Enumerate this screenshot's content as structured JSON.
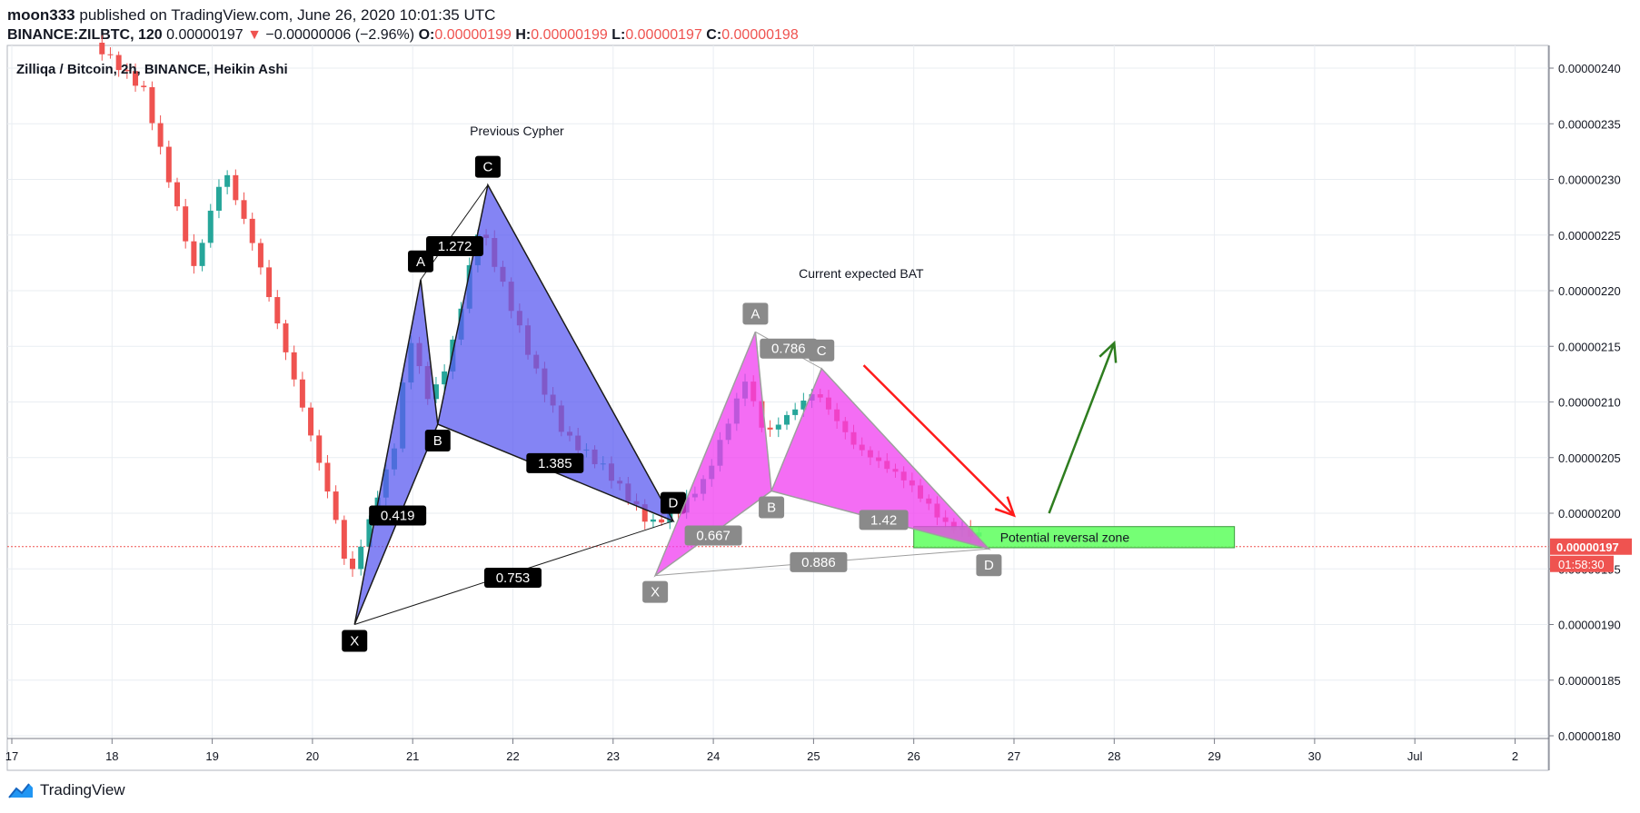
{
  "header": {
    "author": "moon333",
    "published_text": "published on TradingView.com, June 26, 2020 10:01:35 UTC",
    "symbol": "BINANCE:ZILBTC, 120",
    "last": "0.00000197",
    "change_arrow": "▼",
    "change": "−0.00000006 (−2.96%)",
    "o_label": "O:",
    "o_value": "0.00000199",
    "h_label": "H:",
    "h_value": "0.00000199",
    "l_label": "L:",
    "l_value": "0.00000197",
    "c_label": "C:",
    "c_value": "0.00000198"
  },
  "footer": {
    "brand": "TradingView"
  },
  "colors": {
    "up": "#26a69a",
    "down": "#ef5350",
    "blue_pattern": "#5b5bf0",
    "pink_pattern": "#f03cf0",
    "zone": "#66ff66",
    "red_arrow": "#ff1a1a",
    "green_arrow": "#2e7d1f",
    "grid": "#e9edf2"
  },
  "chart_data": {
    "type": "candlestick",
    "title": "Zilliqa / Bitcoin, 2h, BINANCE, Heikin Ashi",
    "x_ticks": [
      "17",
      "18",
      "19",
      "20",
      "21",
      "22",
      "23",
      "24",
      "25",
      "26",
      "27",
      "28",
      "29",
      "30",
      "Jul",
      "2"
    ],
    "y_ticks": [
      "0.00000240",
      "0.00000235",
      "0.00000230",
      "0.00000225",
      "0.00000220",
      "0.00000215",
      "0.00000210",
      "0.00000205",
      "0.00000200",
      "0.00000195",
      "0.00000190",
      "0.00000185",
      "0.00000180"
    ],
    "ylim": [
      1.8e-06,
      2.4e-06
    ],
    "last_price_label": "0.00000197",
    "last_price": 1.97e-06,
    "countdown_label": "01:58:30",
    "annotations": {
      "previous_title": "Previous Cypher",
      "current_title": "Current expected BAT",
      "zone_label": "Potential reversal zone"
    },
    "previous_cypher": {
      "points": [
        {
          "label": "X",
          "day": 20.42,
          "price": 1.9e-06
        },
        {
          "label": "A",
          "day": 21.08,
          "price": 2.21e-06
        },
        {
          "label": "B",
          "day": 21.25,
          "price": 2.08e-06
        },
        {
          "label": "C",
          "day": 21.75,
          "price": 2.295e-06
        },
        {
          "label": "D",
          "day": 23.6,
          "price": 1.993e-06
        }
      ],
      "ratios": [
        {
          "text": "1.272",
          "day": 21.42,
          "price": 2.24e-06
        },
        {
          "text": "0.419",
          "day": 20.85,
          "price": 1.998e-06
        },
        {
          "text": "1.385",
          "day": 22.42,
          "price": 2.045e-06
        },
        {
          "text": "0.753",
          "day": 22.0,
          "price": 1.942e-06
        }
      ]
    },
    "current_bat": {
      "points": [
        {
          "label": "X",
          "day": 23.42,
          "price": 1.944e-06
        },
        {
          "label": "A",
          "day": 24.42,
          "price": 2.163e-06
        },
        {
          "label": "B",
          "day": 24.58,
          "price": 2.02e-06
        },
        {
          "label": "C",
          "day": 25.08,
          "price": 2.13e-06
        },
        {
          "label": "D",
          "day": 26.75,
          "price": 1.968e-06
        }
      ],
      "ratios": [
        {
          "text": "0.786",
          "day": 24.75,
          "price": 2.148e-06
        },
        {
          "text": "0.667",
          "day": 24.0,
          "price": 1.98e-06
        },
        {
          "text": "1.42",
          "day": 25.7,
          "price": 1.994e-06
        },
        {
          "text": "0.886",
          "day": 25.05,
          "price": 1.956e-06
        }
      ]
    },
    "reversal_zone": {
      "day_start": 26.0,
      "day_end": 29.2,
      "price_high": 1.988e-06,
      "price_low": 1.969e-06
    },
    "arrows": [
      {
        "color": "red",
        "from": {
          "day": 25.5,
          "price": 2.133e-06
        },
        "to": {
          "day": 27.0,
          "price": 1.998e-06
        }
      },
      {
        "color": "green",
        "from": {
          "day": 27.35,
          "price": 2e-06
        },
        "to": {
          "day": 28.0,
          "price": 2.153e-06
        }
      }
    ],
    "candles_day_range": [
      17.0,
      26.7
    ]
  }
}
